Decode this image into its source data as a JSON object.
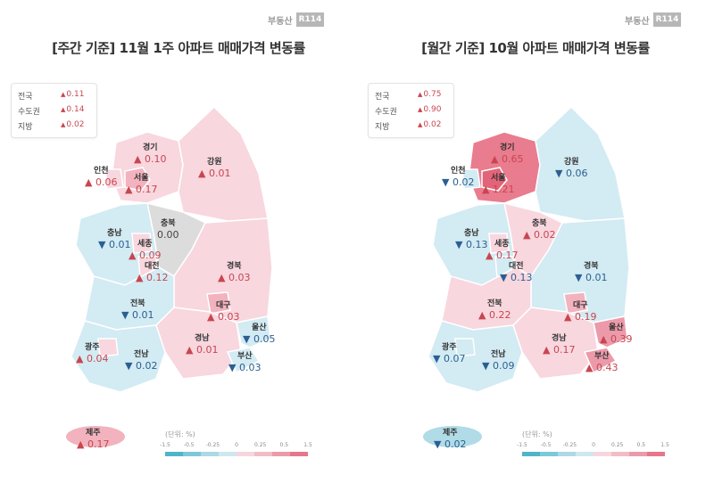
{
  "logo": {
    "text": "부동산",
    "badge": "R114"
  },
  "colors": {
    "up_light": "#f8d7df",
    "up_mid": "#f2b2be",
    "up_strong": "#e97c8e",
    "down_light": "#d3ebf3",
    "down_mid": "#b0dbe7",
    "flat": "#dcdcdc",
    "up_text": "#c8464f",
    "down_text": "#2b5f92",
    "legend": [
      "#4fb5c8",
      "#7cc9d8",
      "#add8e6",
      "#cfe7ef",
      "#f6d6de",
      "#f2bcc6",
      "#ec9aaa",
      "#e6768b"
    ]
  },
  "legend": {
    "unit": "(단위: %)",
    "ticks": [
      "-1.5",
      "-0.5",
      "-0.25",
      "0",
      "0.25",
      "0.5",
      "1.5"
    ]
  },
  "weekly": {
    "title": "[주간 기준] 11월 1주 아파트 매매가격 변동률",
    "summary": [
      {
        "label": "전국",
        "value": "0.11"
      },
      {
        "label": "수도권",
        "value": "0.14"
      },
      {
        "label": "지방",
        "value": "0.02"
      }
    ],
    "regions": {
      "incheon": {
        "name": "인천",
        "value": "0.06",
        "dir": "up"
      },
      "gyeonggi": {
        "name": "경기",
        "value": "0.10",
        "dir": "up"
      },
      "seoul": {
        "name": "서울",
        "value": "0.17",
        "dir": "up"
      },
      "gangwon": {
        "name": "강원",
        "value": "0.01",
        "dir": "up"
      },
      "chungbuk": {
        "name": "충북",
        "value": "0.00",
        "dir": "flat"
      },
      "chungnam": {
        "name": "충남",
        "value": "0.01",
        "dir": "down"
      },
      "sejong": {
        "name": "세종",
        "value": "0.09",
        "dir": "up"
      },
      "daejeon": {
        "name": "대전",
        "value": "0.12",
        "dir": "up"
      },
      "gyeongbuk": {
        "name": "경북",
        "value": "0.03",
        "dir": "up"
      },
      "jeonbuk": {
        "name": "전북",
        "value": "0.01",
        "dir": "down"
      },
      "daegu": {
        "name": "대구",
        "value": "0.03",
        "dir": "up"
      },
      "ulsan": {
        "name": "울산",
        "value": "0.05",
        "dir": "down"
      },
      "gwangju": {
        "name": "광주",
        "value": "0.04",
        "dir": "up"
      },
      "jeonnam": {
        "name": "전남",
        "value": "0.02",
        "dir": "down"
      },
      "gyeongnam": {
        "name": "경남",
        "value": "0.01",
        "dir": "up"
      },
      "busan": {
        "name": "부산",
        "value": "0.03",
        "dir": "down"
      },
      "jeju": {
        "name": "제주",
        "value": "0.17",
        "dir": "up"
      }
    }
  },
  "monthly": {
    "title": "[월간 기준] 10월 아파트 매매가격 변동률",
    "summary": [
      {
        "label": "전국",
        "value": "0.75"
      },
      {
        "label": "수도권",
        "value": "0.90"
      },
      {
        "label": "지방",
        "value": "0.02"
      }
    ],
    "regions": {
      "incheon": {
        "name": "인천",
        "value": "0.02",
        "dir": "down"
      },
      "gyeonggi": {
        "name": "경기",
        "value": "0.65",
        "dir": "up"
      },
      "seoul": {
        "name": "서울",
        "value": "1.21",
        "dir": "up"
      },
      "gangwon": {
        "name": "강원",
        "value": "0.06",
        "dir": "down"
      },
      "chungbuk": {
        "name": "충북",
        "value": "0.02",
        "dir": "up"
      },
      "chungnam": {
        "name": "충남",
        "value": "0.13",
        "dir": "down"
      },
      "sejong": {
        "name": "세종",
        "value": "0.17",
        "dir": "up"
      },
      "daejeon": {
        "name": "대전",
        "value": "0.13",
        "dir": "down"
      },
      "gyeongbuk": {
        "name": "경북",
        "value": "0.01",
        "dir": "down"
      },
      "jeonbuk": {
        "name": "전북",
        "value": "0.22",
        "dir": "up"
      },
      "daegu": {
        "name": "대구",
        "value": "0.19",
        "dir": "up"
      },
      "ulsan": {
        "name": "울산",
        "value": "0.39",
        "dir": "up"
      },
      "gwangju": {
        "name": "광주",
        "value": "0.07",
        "dir": "down"
      },
      "jeonnam": {
        "name": "전남",
        "value": "0.09",
        "dir": "down"
      },
      "gyeongnam": {
        "name": "경남",
        "value": "0.17",
        "dir": "up"
      },
      "busan": {
        "name": "부산",
        "value": "0.43",
        "dir": "up"
      },
      "jeju": {
        "name": "제주",
        "value": "0.02",
        "dir": "down"
      }
    }
  }
}
